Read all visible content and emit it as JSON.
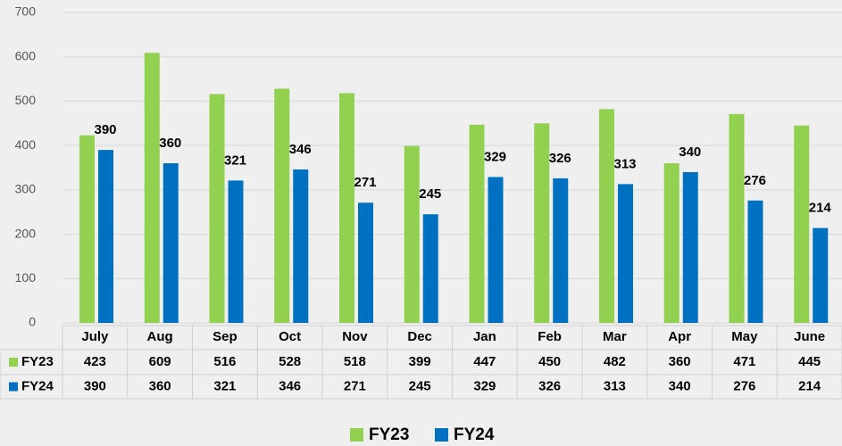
{
  "chart_data": {
    "type": "bar",
    "categories": [
      "July",
      "Aug",
      "Sep",
      "Oct",
      "Nov",
      "Dec",
      "Jan",
      "Feb",
      "Mar",
      "Apr",
      "May",
      "June"
    ],
    "series": [
      {
        "name": "FY23",
        "color": "#92d050",
        "values": [
          423,
          609,
          516,
          528,
          518,
          399,
          447,
          450,
          482,
          360,
          471,
          445
        ]
      },
      {
        "name": "FY24",
        "color": "#0070c0",
        "values": [
          390,
          360,
          321,
          346,
          271,
          245,
          329,
          326,
          313,
          340,
          276,
          214
        ]
      }
    ],
    "ylim": [
      0,
      700
    ],
    "yticks": [
      0,
      100,
      200,
      300,
      400,
      500,
      600,
      700
    ],
    "grid": true,
    "legend": "bottom"
  }
}
